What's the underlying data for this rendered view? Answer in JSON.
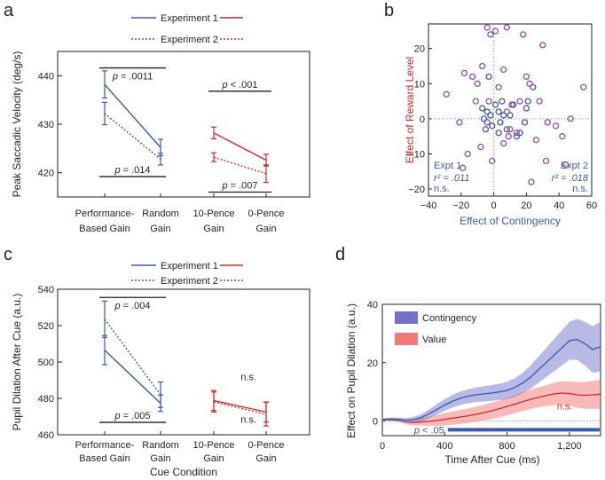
{
  "panels": {
    "a": "a",
    "b": "b",
    "c": "c",
    "d": "d"
  },
  "colors": {
    "blue": "#3b5aa8",
    "red": "#d12a2a",
    "purple": "#8a4fa7",
    "shade_blue": "#7d7fcf",
    "shade_red": "#f28080",
    "black": "#231f20"
  },
  "legend_ac": {
    "exp1": "Experiment 1",
    "exp2": "Experiment 2"
  },
  "cue_labels": {
    "perf": [
      "Performance-",
      "Based Gain"
    ],
    "random": [
      "Random",
      "Gain"
    ],
    "ten": [
      "10-Pence",
      "Gain"
    ],
    "zero": [
      "0-Pence",
      "Gain"
    ]
  },
  "c_xlabel": "Cue Condition",
  "chart_data": [
    {
      "id": "a",
      "type": "line",
      "title": "",
      "ylabel": "Peak Saccadic Velocity (deg/s)",
      "ylim": [
        415,
        445
      ],
      "yticks": [
        420,
        430,
        440
      ],
      "categories": [
        "Performance-Based Gain",
        "Random Gain",
        "10-Pence Gain",
        "0-Pence Gain"
      ],
      "series": [
        {
          "name": "Experiment 1 contingency",
          "color": "blue",
          "style": "solid",
          "x": [
            0,
            1
          ],
          "values": [
            438.2,
            425.2
          ],
          "err": [
            2.8,
            1.7
          ]
        },
        {
          "name": "Experiment 2 contingency",
          "color": "blue",
          "style": "dotted",
          "x": [
            0,
            1
          ],
          "values": [
            432.2,
            422.8
          ],
          "err": [
            2.3,
            1.2
          ]
        },
        {
          "name": "Experiment 1 value",
          "color": "red",
          "style": "solid",
          "x": [
            2,
            3
          ],
          "values": [
            428.2,
            422.6
          ],
          "err": [
            1.2,
            1.2
          ]
        },
        {
          "name": "Experiment 2 value",
          "color": "red",
          "style": "dotted",
          "x": [
            2,
            3
          ],
          "values": [
            423.2,
            419.8
          ],
          "err": [
            0.9,
            1.8
          ]
        }
      ],
      "annotations": [
        {
          "text": "p = .0011",
          "y": 441.6,
          "x1": 0,
          "x2": 1,
          "label_pos": "below"
        },
        {
          "text": "p = .014",
          "y": 419.2,
          "x1": 0,
          "x2": 1,
          "label_pos": "above"
        },
        {
          "text": "p < .001",
          "y": 436.8,
          "x1": 2,
          "x2": 3,
          "label_pos": "above"
        },
        {
          "text": "p = .007",
          "y": 416.0,
          "x1": 2,
          "x2": 3,
          "label_pos": "above"
        }
      ]
    },
    {
      "id": "b",
      "type": "scatter",
      "xlabel": "Effect of Contingency",
      "ylabel": "Effect of Reward Level",
      "xlim": [
        -40,
        60
      ],
      "ylim": [
        -22,
        27
      ],
      "xticks": [
        -40,
        -20,
        0,
        20,
        40,
        60
      ],
      "yticks": [
        -20,
        -10,
        0,
        10,
        20
      ],
      "series": [
        {
          "name": "Experiment 1",
          "color": "blue",
          "points": [
            [
              -7,
              3
            ],
            [
              -4,
              2
            ],
            [
              -2,
              1
            ],
            [
              1,
              4
            ],
            [
              3,
              2
            ],
            [
              6,
              1
            ],
            [
              -5,
              -3
            ],
            [
              -1,
              -2
            ],
            [
              3,
              -4
            ],
            [
              8,
              -3
            ],
            [
              14,
              -5
            ],
            [
              19,
              -1
            ],
            [
              21,
              5
            ],
            [
              -3,
              12
            ],
            [
              5,
              5
            ],
            [
              12,
              4
            ],
            [
              20,
              3
            ],
            [
              24,
              9
            ],
            [
              16,
              -4
            ],
            [
              10,
              1
            ],
            [
              -6,
              0
            ],
            [
              4,
              -1
            ]
          ]
        },
        {
          "name": "Experiment 2",
          "color": "purple",
          "points": [
            [
              -29,
              7
            ],
            [
              -18,
              13
            ],
            [
              -13,
              12
            ],
            [
              -4,
              26
            ],
            [
              -2,
              24
            ],
            [
              1,
              25
            ],
            [
              8,
              26
            ],
            [
              18,
              24
            ],
            [
              30,
              21
            ],
            [
              -7,
              15
            ],
            [
              6,
              14
            ],
            [
              -3,
              5
            ],
            [
              -10,
              10
            ],
            [
              3,
              9
            ],
            [
              8,
              2
            ],
            [
              11,
              4
            ],
            [
              14,
              -4
            ],
            [
              16,
              5
            ],
            [
              20,
              12
            ],
            [
              22,
              10
            ],
            [
              28,
              5
            ],
            [
              33,
              -1
            ],
            [
              38,
              -2
            ],
            [
              42,
              -5
            ],
            [
              47,
              0
            ],
            [
              55,
              9
            ],
            [
              -16,
              -10
            ],
            [
              -19,
              -14
            ],
            [
              -21,
              -1
            ],
            [
              -8,
              -8
            ],
            [
              -1,
              -12
            ],
            [
              6,
              -7
            ],
            [
              10,
              -3
            ],
            [
              23,
              -18
            ],
            [
              32,
              -12
            ],
            [
              44,
              -13
            ],
            [
              -4,
              -1
            ],
            [
              9,
              -5
            ],
            [
              26,
              -6
            ],
            [
              -11,
              5
            ]
          ]
        }
      ],
      "annotations": {
        "left": [
          "Expt 1",
          "r² = .011",
          "n.s."
        ],
        "right": [
          "Expt 2",
          "r² = .018",
          "n.s."
        ]
      }
    },
    {
      "id": "c",
      "type": "line",
      "xlabel": "Cue Condition",
      "ylabel": "Pupil Dilation After Cue (a.u.)",
      "ylim": [
        460,
        540
      ],
      "yticks": [
        460,
        480,
        500,
        520,
        540
      ],
      "categories": [
        "Performance-Based Gain",
        "Random Gain",
        "10-Pence Gain",
        "0-Pence Gain"
      ],
      "series": [
        {
          "name": "Experiment 1 contingency",
          "color": "blue",
          "style": "solid",
          "x": [
            0,
            1
          ],
          "values": [
            506.5,
            477.3
          ],
          "err": [
            8.0,
            4.5
          ]
        },
        {
          "name": "Experiment 2 contingency",
          "color": "blue",
          "style": "dotted",
          "x": [
            0,
            1
          ],
          "values": [
            523.5,
            482.0
          ],
          "err": [
            10.0,
            7.0
          ]
        },
        {
          "name": "Experiment 1 value",
          "color": "red",
          "style": "solid",
          "x": [
            2,
            3
          ],
          "values": [
            478.8,
            472.5
          ],
          "err": [
            5.5,
            5.5
          ]
        },
        {
          "name": "Experiment 2 value",
          "color": "red",
          "style": "dotted",
          "x": [
            2,
            3
          ],
          "values": [
            478.0,
            471.3
          ],
          "err": [
            5.5,
            6.5
          ]
        }
      ],
      "annotations": [
        {
          "text": "p = .004",
          "y": 535.5,
          "x1": 0,
          "x2": 1,
          "label_pos": "below"
        },
        {
          "text": "p = .005",
          "y": 466.8,
          "x1": 0,
          "x2": 1,
          "label_pos": "above"
        },
        {
          "text": "n.s.",
          "y": 490.0,
          "x1": 2.9,
          "x2": 2.9,
          "label_pos": "none"
        },
        {
          "text": "n.s.",
          "y": 466.5,
          "x1": 2.9,
          "x2": 2.9,
          "label_pos": "none"
        }
      ]
    },
    {
      "id": "d",
      "type": "area",
      "xlabel": "Time After Cue (ms)",
      "ylabel": "Effect on Pupil Dilation (a.u.)",
      "xlim": [
        0,
        1400
      ],
      "ylim": [
        -5,
        40
      ],
      "xticks": [
        0,
        400,
        800,
        1200
      ],
      "xtick_labels": [
        "0",
        "400",
        "800",
        "1,200"
      ],
      "yticks": [
        0,
        20,
        40
      ],
      "series": [
        {
          "name": "Contingency",
          "color": "blue",
          "x": [
            0,
            50,
            100,
            150,
            200,
            250,
            300,
            350,
            400,
            450,
            500,
            550,
            600,
            650,
            700,
            750,
            800,
            850,
            900,
            950,
            1000,
            1050,
            1100,
            1150,
            1200,
            1250,
            1300,
            1350,
            1400
          ],
          "mean": [
            0.5,
            0.7,
            0.6,
            0.3,
            0.5,
            1.2,
            2.5,
            4.0,
            5.5,
            6.8,
            7.8,
            8.5,
            9.0,
            9.3,
            9.6,
            10.0,
            10.5,
            11.5,
            13.0,
            15.0,
            17.5,
            20.0,
            22.5,
            25.0,
            27.5,
            28.0,
            26.5,
            24.5,
            25.5
          ],
          "half_width": [
            0.4,
            0.5,
            0.6,
            0.7,
            0.9,
            1.2,
            1.5,
            1.8,
            2.0,
            2.2,
            2.3,
            2.4,
            2.5,
            2.6,
            2.7,
            2.8,
            3.0,
            3.2,
            3.5,
            4.0,
            4.5,
            5.0,
            5.5,
            6.0,
            6.5,
            7.0,
            7.5,
            8.0,
            8.5
          ]
        },
        {
          "name": "Value",
          "color": "red",
          "x": [
            0,
            50,
            100,
            150,
            200,
            250,
            300,
            350,
            400,
            450,
            500,
            550,
            600,
            650,
            700,
            750,
            800,
            850,
            900,
            950,
            1000,
            1050,
            1100,
            1150,
            1200,
            1250,
            1300,
            1350,
            1400
          ],
          "mean": [
            0.5,
            0.4,
            0.3,
            -0.3,
            -0.5,
            -0.3,
            -0.1,
            0.2,
            0.6,
            1.0,
            1.4,
            1.8,
            2.3,
            2.8,
            3.5,
            4.2,
            5.0,
            5.8,
            6.6,
            7.4,
            8.1,
            8.7,
            9.3,
            9.6,
            9.4,
            9.0,
            8.8,
            9.0,
            9.2
          ],
          "half_width": [
            0.4,
            0.5,
            0.6,
            0.8,
            1.0,
            1.3,
            1.6,
            1.9,
            2.1,
            2.3,
            2.4,
            2.5,
            2.6,
            2.7,
            2.8,
            2.9,
            3.0,
            3.1,
            3.2,
            3.3,
            3.4,
            3.6,
            3.8,
            4.0,
            4.2,
            4.4,
            4.6,
            4.8,
            5.0
          ]
        }
      ],
      "legend": [
        "Contingency",
        "Value"
      ],
      "sig_bar": {
        "label": "p < .05",
        "x_start": 420,
        "x_end": 1400,
        "y": -3
      },
      "annotations": [
        {
          "text": "n.s.",
          "x": 1170,
          "y": 4
        }
      ]
    }
  ]
}
